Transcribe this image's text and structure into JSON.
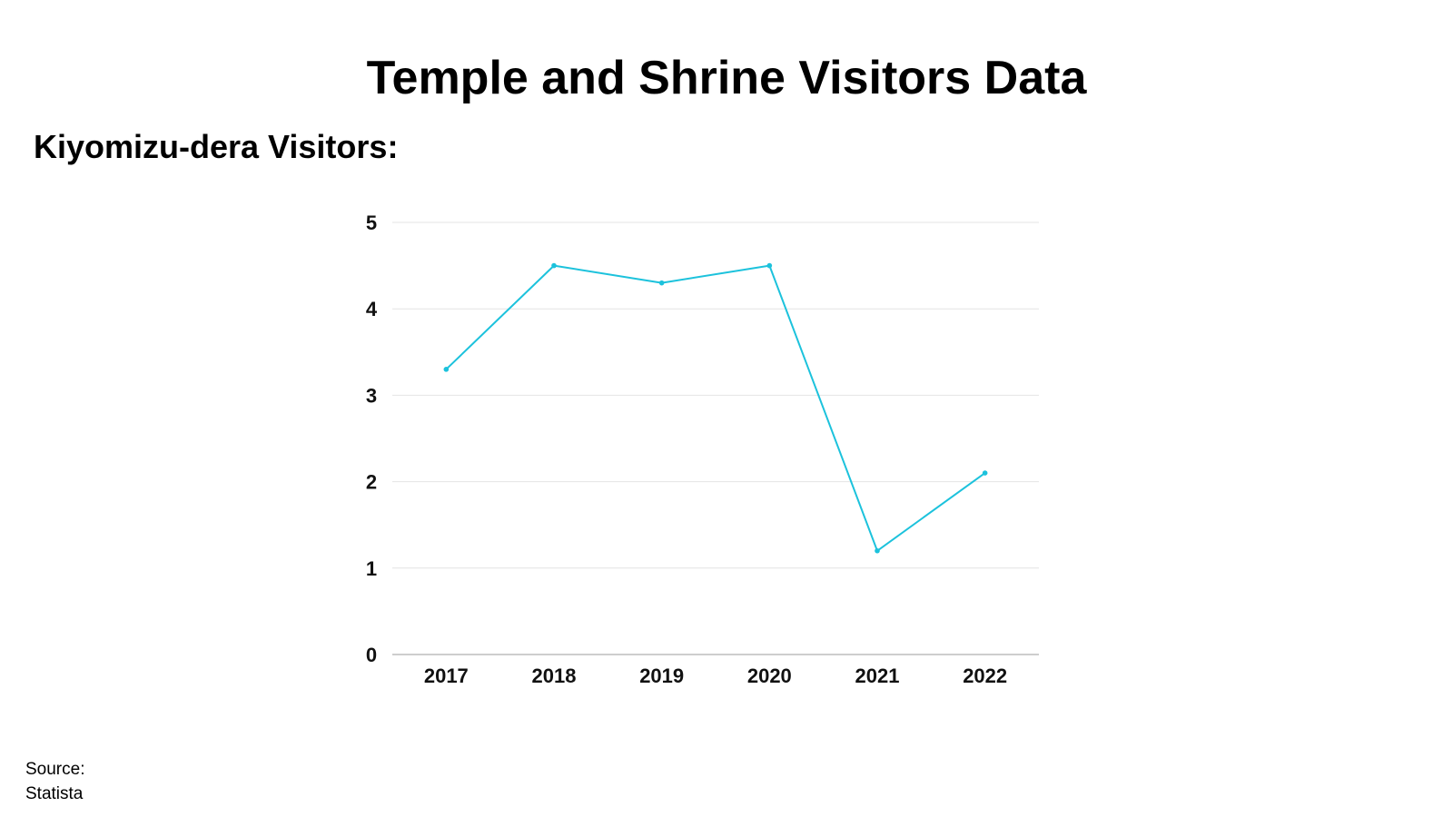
{
  "page": {
    "title": "Temple and Shrine Visitors Data",
    "source_label": "Source:",
    "source_name": "Statista"
  },
  "chart_data": {
    "type": "line",
    "title": "Kiyomizu-dera Visitors:",
    "xlabel": "",
    "ylabel": "",
    "categories": [
      "2017",
      "2018",
      "2019",
      "2020",
      "2021",
      "2022"
    ],
    "series": [
      {
        "values": [
          3.3,
          4.5,
          4.3,
          4.5,
          1.2,
          2.1
        ]
      }
    ],
    "ylim": [
      0,
      5
    ],
    "yticks": [
      0,
      1,
      2,
      3,
      4,
      5
    ],
    "grid": true,
    "legend": "none",
    "colors": {
      "line": "#1cc2dc",
      "grid": "#e4e4e4",
      "axis": "#bdbdbd"
    }
  }
}
